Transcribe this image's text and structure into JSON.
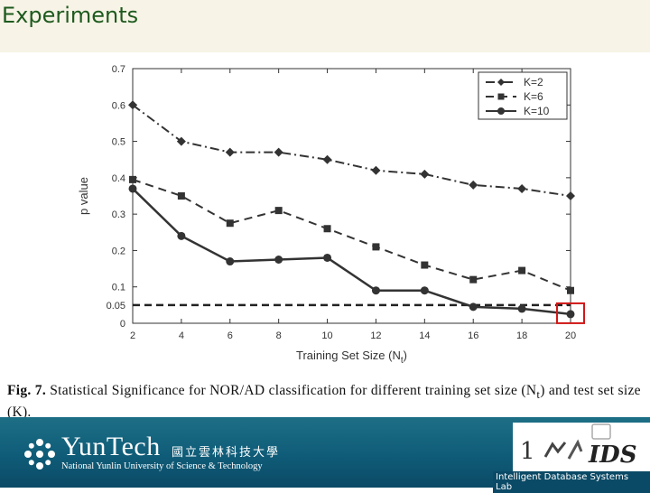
{
  "slide": {
    "title": "Experiments",
    "caption_fig": "Fig. 7.",
    "caption_text": "Statistical Significance for NOR/AD classification for different training set size (N",
    "caption_sub": "t",
    "caption_tail": ") and test set size (K).",
    "footer": {
      "university": "YunTech",
      "university_cn": "國立雲林科技大學",
      "university_en": "National Yunlin University of Science & Technology",
      "lab": "Intelligent Database Systems Lab"
    }
  },
  "chart_data": {
    "type": "line",
    "xlabel": "Training Set Size (N",
    "xlabel_sub": "t",
    "xlabel_tail": ")",
    "ylabel": "p value",
    "x": [
      2,
      4,
      6,
      8,
      10,
      12,
      14,
      16,
      18,
      20
    ],
    "xlim": [
      2,
      20
    ],
    "ylim": [
      0,
      0.7
    ],
    "yticks": [
      "0",
      "0.05",
      "0.1",
      "0.2",
      "0.3",
      "0.4",
      "0.5",
      "0.6",
      "0.7"
    ],
    "ytick_values": [
      0,
      0.05,
      0.1,
      0.2,
      0.3,
      0.4,
      0.5,
      0.6,
      0.7
    ],
    "xticks": [
      "2",
      "4",
      "6",
      "8",
      "10",
      "12",
      "14",
      "16",
      "18",
      "20"
    ],
    "legend_position": "top-right",
    "threshold": 0.05,
    "highlight_point": {
      "x": 20,
      "y": 0.025
    },
    "series": [
      {
        "name": "K=2",
        "style": "dashdot",
        "marker": "diamond",
        "values": [
          0.6,
          0.5,
          0.47,
          0.47,
          0.45,
          0.42,
          0.41,
          0.38,
          0.37,
          0.35
        ]
      },
      {
        "name": "K=6",
        "style": "dashed",
        "marker": "square",
        "values": [
          0.395,
          0.35,
          0.275,
          0.31,
          0.26,
          0.21,
          0.16,
          0.12,
          0.145,
          0.09
        ]
      },
      {
        "name": "K=10",
        "style": "solid",
        "marker": "circle",
        "values": [
          0.37,
          0.24,
          0.17,
          0.175,
          0.18,
          0.09,
          0.09,
          0.045,
          0.04,
          0.025
        ]
      }
    ]
  }
}
